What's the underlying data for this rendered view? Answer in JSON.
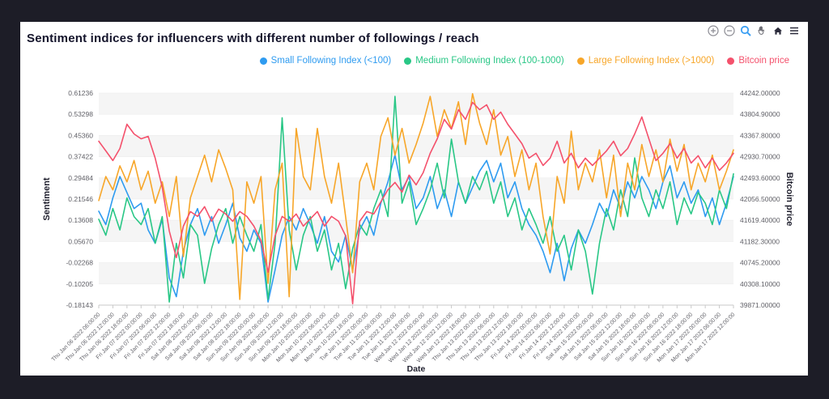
{
  "window": {
    "background": "#1d1d27",
    "card_background": "#ffffff"
  },
  "header": {
    "title": "Sentiment indices for influencers with different number of followings / reach"
  },
  "toolbar": {
    "icons": [
      "zoom-in",
      "zoom-out",
      "zoom-select",
      "pan",
      "reset-home",
      "menu"
    ]
  },
  "legend": {
    "items": [
      {
        "label": "Small Following Index (<100)",
        "color": "#2E9BF0"
      },
      {
        "label": "Medium Following Index (100-1000)",
        "color": "#29C786"
      },
      {
        "label": "Large Following Index (>1000)",
        "color": "#F7A629"
      },
      {
        "label": "Bitcoin price",
        "color": "#F4516C"
      }
    ]
  },
  "chart_data": {
    "type": "line",
    "title": "Sentiment indices for influencers with different number of followings / reach",
    "grid": "interlaced-horizontal-bands",
    "interlaced_band_color": "#f5f5f5",
    "legend_position": "top-right",
    "x_axis": {
      "label": "Date",
      "start": "Thu Jan 06 2022 06:00:00",
      "end": "Mon Jan 17 2022 12:00:00",
      "tick_interval_hours": 6,
      "tick_labels": [
        "Thu Jan 06 2022 06:00:00",
        "Thu Jan 06 2022 12:00:00",
        "Thu Jan 06 2022 18:00:00",
        "Fri Jan 07 2022 00:00:00",
        "Fri Jan 07 2022 06:00:00",
        "Fri Jan 07 2022 12:00:00",
        "Fri Jan 07 2022 18:00:00",
        "Sat Jan 08 2022 00:00:00",
        "Sat Jan 08 2022 06:00:00",
        "Sat Jan 08 2022 12:00:00",
        "Sat Jan 08 2022 18:00:00",
        "Sun Jan 09 2022 00:00:00",
        "Sun Jan 09 2022 06:00:00",
        "Sun Jan 09 2022 12:00:00",
        "Sun Jan 09 2022 18:00:00",
        "Mon Jan 10 2022 00:00:00",
        "Mon Jan 10 2022 06:00:00",
        "Mon Jan 10 2022 12:00:00",
        "Mon Jan 10 2022 18:00:00",
        "Tue Jan 11 2022 00:00:00",
        "Tue Jan 11 2022 06:00:00",
        "Tue Jan 11 2022 12:00:00",
        "Tue Jan 11 2022 18:00:00",
        "Wed Jan 12 2022 00:00:00",
        "Wed Jan 12 2022 06:00:00",
        "Wed Jan 12 2022 12:00:00",
        "Wed Jan 12 2022 18:00:00",
        "Thu Jan 13 2022 00:00:00",
        "Thu Jan 13 2022 06:00:00",
        "Thu Jan 13 2022 12:00:00",
        "Thu Jan 13 2022 18:00:00",
        "Fri Jan 14 2022 00:00:00",
        "Fri Jan 14 2022 06:00:00",
        "Fri Jan 14 2022 12:00:00",
        "Fri Jan 14 2022 18:00:00",
        "Sat Jan 15 2022 00:00:00",
        "Sat Jan 15 2022 06:00:00",
        "Sat Jan 15 2022 12:00:00",
        "Sat Jan 15 2022 18:00:00",
        "Sun Jan 16 2022 00:00:00",
        "Sun Jan 16 2022 06:00:00",
        "Sun Jan 16 2022 12:00:00",
        "Sun Jan 16 2022 18:00:00",
        "Mon Jan 17 2022 00:00:00",
        "Mon Jan 17 2022 06:00:00",
        "Mon Jan 17 2022 12:00:00"
      ]
    },
    "y_axis_left": {
      "label": "Sentiment",
      "range": [
        -0.18143,
        0.61236
      ],
      "ticks": [
        "0.61236",
        "0.53298",
        "0.45360",
        "0.37422",
        "0.29484",
        "0.21546",
        "0.13608",
        "0.05670",
        "-0.02268",
        "-0.10205",
        "-0.18143"
      ]
    },
    "y_axis_right": {
      "label": "Bitcoin price",
      "range": [
        39871.0,
        44242.0
      ],
      "ticks": [
        "44242.00000",
        "43804.90000",
        "43367.80000",
        "42930.70000",
        "42493.60000",
        "42056.50000",
        "41619.40000",
        "41182.30000",
        "40745.20000",
        "40308.10000",
        "39871.00000"
      ]
    },
    "sample_interval_hours": 3,
    "series": [
      {
        "name": "Small Following Index (<100)",
        "color": "#2E9BF0",
        "axis": "left",
        "values": [
          0.17,
          0.12,
          0.22,
          0.3,
          0.24,
          0.18,
          0.2,
          0.1,
          0.05,
          0.14,
          -0.08,
          -0.15,
          0.02,
          0.12,
          0.18,
          0.08,
          0.15,
          0.05,
          0.12,
          0.2,
          0.07,
          0.02,
          0.1,
          0.05,
          -0.17,
          -0.05,
          0.08,
          0.15,
          0.1,
          0.18,
          0.12,
          0.05,
          0.15,
          0.02,
          -0.02,
          0.08,
          -0.05,
          0.1,
          0.15,
          0.08,
          0.2,
          0.28,
          0.38,
          0.25,
          0.3,
          0.18,
          0.22,
          0.3,
          0.18,
          0.25,
          0.15,
          0.28,
          0.2,
          0.26,
          0.32,
          0.36,
          0.28,
          0.35,
          0.22,
          0.28,
          0.18,
          0.12,
          0.08,
          0.02,
          -0.06,
          0.05,
          -0.09,
          0.03,
          0.1,
          0.05,
          0.12,
          0.2,
          0.15,
          0.25,
          0.18,
          0.28,
          0.22,
          0.3,
          0.25,
          0.18,
          0.28,
          0.34,
          0.22,
          0.28,
          0.2,
          0.25,
          0.15,
          0.22,
          0.12,
          0.2,
          0.3
        ]
      },
      {
        "name": "Medium Following Index (100-1000)",
        "color": "#29C786",
        "axis": "left",
        "values": [
          0.14,
          0.08,
          0.18,
          0.1,
          0.22,
          0.15,
          0.12,
          0.18,
          0.05,
          0.15,
          -0.17,
          0.05,
          -0.08,
          0.12,
          0.08,
          -0.1,
          0.03,
          0.12,
          0.18,
          0.05,
          0.15,
          0.08,
          0.02,
          0.12,
          -0.16,
          0.05,
          0.52,
          0.1,
          -0.05,
          0.08,
          0.15,
          0.02,
          0.1,
          -0.05,
          0.05,
          -0.12,
          0.03,
          0.12,
          0.08,
          0.18,
          0.25,
          0.15,
          0.6,
          0.2,
          0.28,
          0.12,
          0.18,
          0.25,
          0.35,
          0.22,
          0.44,
          0.28,
          0.2,
          0.3,
          0.25,
          0.32,
          0.2,
          0.28,
          0.15,
          0.22,
          0.1,
          0.18,
          0.12,
          0.05,
          0.15,
          0.02,
          0.08,
          -0.05,
          0.1,
          0.02,
          -0.14,
          0.05,
          0.18,
          0.1,
          0.25,
          0.15,
          0.37,
          0.22,
          0.15,
          0.25,
          0.18,
          0.28,
          0.12,
          0.22,
          0.16,
          0.24,
          0.2,
          0.12,
          0.25,
          0.18,
          0.31
        ]
      },
      {
        "name": "Large Following Index (>1000)",
        "color": "#F7A629",
        "axis": "left",
        "values": [
          0.21,
          0.3,
          0.25,
          0.34,
          0.28,
          0.36,
          0.25,
          0.32,
          0.2,
          0.28,
          0.15,
          0.3,
          0.0,
          0.22,
          0.3,
          0.38,
          0.28,
          0.4,
          0.33,
          0.25,
          -0.16,
          0.28,
          0.2,
          0.3,
          -0.1,
          0.25,
          0.35,
          -0.15,
          0.48,
          0.3,
          0.25,
          0.48,
          0.3,
          0.2,
          0.35,
          0.15,
          -0.06,
          0.28,
          0.35,
          0.25,
          0.45,
          0.52,
          0.38,
          0.48,
          0.35,
          0.42,
          0.5,
          0.6,
          0.45,
          0.55,
          0.48,
          0.58,
          0.42,
          0.61,
          0.5,
          0.42,
          0.55,
          0.38,
          0.45,
          0.3,
          0.4,
          0.25,
          0.35,
          0.15,
          0.01,
          0.3,
          0.2,
          0.47,
          0.25,
          0.35,
          0.28,
          0.4,
          0.22,
          0.38,
          0.15,
          0.35,
          0.25,
          0.42,
          0.3,
          0.4,
          0.28,
          0.44,
          0.32,
          0.42,
          0.25,
          0.35,
          0.28,
          0.38,
          0.25,
          0.32,
          0.4
        ]
      },
      {
        "name": "Bitcoin price",
        "color": "#F4516C",
        "axis": "right",
        "values": [
          43250,
          43050,
          42850,
          43100,
          43600,
          43400,
          43300,
          43350,
          42900,
          42300,
          41400,
          40850,
          41500,
          41800,
          41700,
          41900,
          41600,
          41850,
          41750,
          41600,
          41800,
          41700,
          41500,
          41200,
          40550,
          41300,
          41700,
          41600,
          41750,
          41500,
          41650,
          41800,
          41500,
          41700,
          41600,
          41300,
          39900,
          41600,
          41800,
          41750,
          42000,
          42250,
          42400,
          42200,
          42550,
          42350,
          42600,
          43000,
          43300,
          43700,
          43500,
          43900,
          43700,
          44050,
          43900,
          44000,
          43700,
          43850,
          43600,
          43400,
          43200,
          42900,
          43000,
          42750,
          42900,
          43250,
          42800,
          43000,
          42700,
          42900,
          42750,
          42900,
          43050,
          43250,
          42950,
          43100,
          43400,
          43750,
          43300,
          42850,
          43000,
          43200,
          42900,
          43100,
          42800,
          42950,
          42700,
          42900,
          42650,
          42800,
          43000
        ]
      }
    ]
  }
}
